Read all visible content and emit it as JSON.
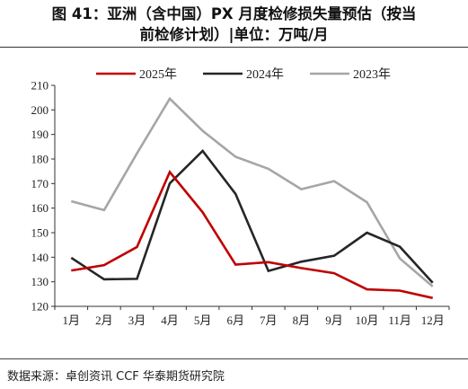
{
  "title_line1": "图 41：亚洲（含中国）PX 月度检修损失量预估（按当",
  "title_line2": "前检修计划）|单位：万吨/月",
  "source": "数据来源：卓创资讯 CCF 华泰期货研究院",
  "chart_data": {
    "type": "line",
    "categories": [
      "1月",
      "2月",
      "3月",
      "4月",
      "5月",
      "6月",
      "7月",
      "8月",
      "9月",
      "10月",
      "11月",
      "12月"
    ],
    "ylim": [
      120,
      210
    ],
    "yticks": [
      120,
      130,
      140,
      150,
      160,
      170,
      180,
      190,
      200,
      210
    ],
    "grid": false,
    "legend_position": "top",
    "series": [
      {
        "name": "2025年",
        "color": "#c00000",
        "values": [
          134.6,
          136.8,
          144.2,
          174.7,
          158.3,
          137.0,
          138.0,
          135.6,
          133.5,
          126.9,
          126.4,
          123.4
        ]
      },
      {
        "name": "2024年",
        "color": "#262626",
        "values": [
          139.8,
          131.0,
          131.2,
          170.1,
          183.3,
          165.8,
          134.4,
          138.2,
          140.6,
          150.0,
          144.3,
          129.6
        ]
      },
      {
        "name": "2023年",
        "color": "#a6a6a6",
        "values": [
          162.8,
          159.2,
          182.3,
          204.6,
          191.5,
          180.9,
          176.0,
          167.7,
          171.0,
          162.4,
          139.5,
          128.1
        ]
      }
    ]
  }
}
